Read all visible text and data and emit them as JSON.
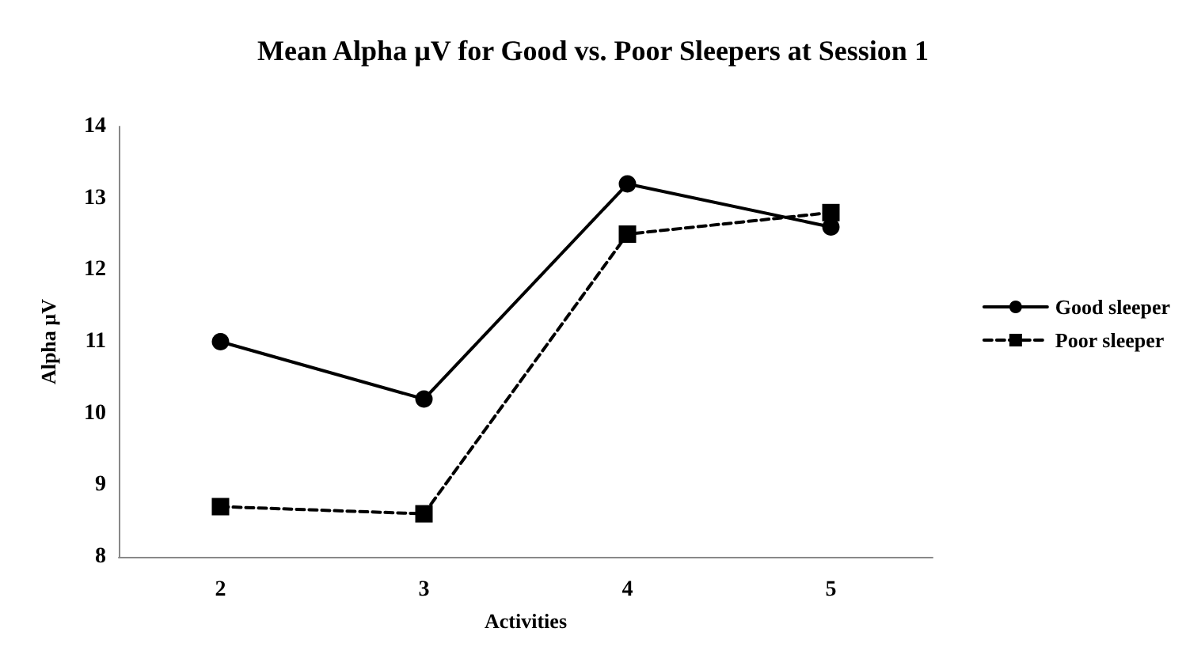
{
  "chart_data": {
    "type": "line",
    "title": "Mean Alpha µV for Good vs. Poor Sleepers at Session 1",
    "xlabel": "Activities",
    "ylabel": "Alpha µV",
    "categories": [
      "2",
      "3",
      "4",
      "5"
    ],
    "series": [
      {
        "name": "Good sleeper",
        "color": "#000000",
        "values": [
          11.0,
          10.2,
          13.2,
          12.6
        ],
        "marker": "circle",
        "line_style": "solid"
      },
      {
        "name": "Poor sleeper",
        "color": "#000000",
        "values": [
          8.7,
          8.6,
          12.5,
          12.8
        ],
        "marker": "square",
        "line_style": "dashed"
      }
    ],
    "ylim": [
      8,
      14
    ],
    "yticks": [
      8,
      9,
      10,
      11,
      12,
      13,
      14
    ],
    "grid": false,
    "legend": "right"
  }
}
